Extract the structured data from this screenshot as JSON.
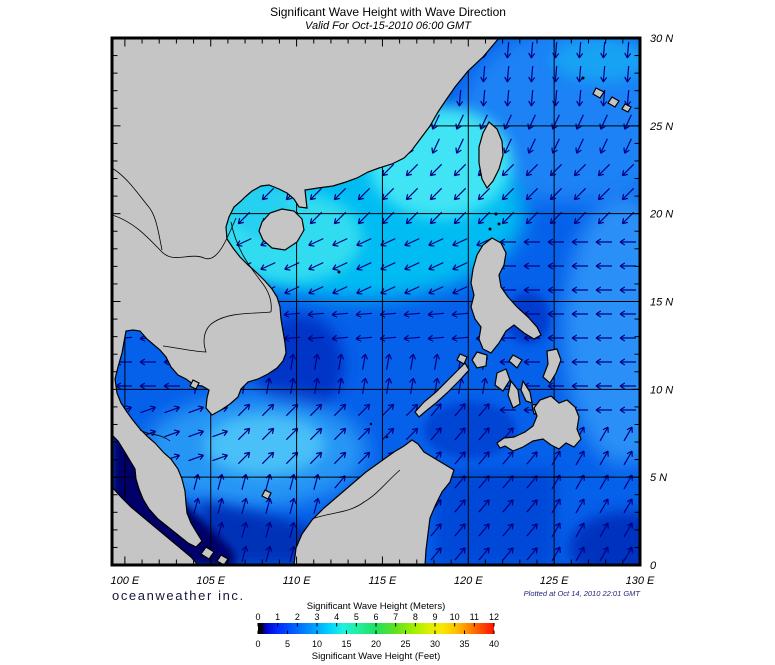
{
  "header": {
    "title": "Significant Wave Height with Wave Direction",
    "subtitle": "Valid For Oct-15-2010 06:00 GMT"
  },
  "axes": {
    "longitude_labels": [
      "100 E",
      "105 E",
      "110 E",
      "115 E",
      "120 E",
      "125 E",
      "130 E"
    ],
    "latitude_labels": [
      "30 N",
      "25 N",
      "20 N",
      "15 N",
      "10 N",
      "5 N",
      "0"
    ]
  },
  "legend": {
    "meters_label": "Significant Wave Height (Meters)",
    "meters_ticks": [
      "0",
      "1",
      "2",
      "3",
      "4",
      "5",
      "6",
      "7",
      "8",
      "9",
      "10",
      "11",
      "12"
    ],
    "feet_label": "Significant Wave Height (Feet)",
    "feet_ticks": [
      "0",
      "5",
      "10",
      "15",
      "20",
      "25",
      "30",
      "35",
      "40"
    ]
  },
  "footer": {
    "company": "oceanweather inc.",
    "plotted": "Plotted at Oct 14, 2010 22:01 GMT"
  },
  "colors": {
    "land": "#c5c5c5",
    "coastline": "#000000",
    "sea_base": "#0560ea",
    "sea_cyan_high": "#40e4f4",
    "sea_dark_low": "#000368",
    "arrow": "#000080",
    "grid": "#000000",
    "colorbar_scale": [
      "#000000",
      "#0000c0",
      "#0028ff",
      "#0064ff",
      "#00a0ff",
      "#00d0ff",
      "#20f0e0",
      "#20f0a0",
      "#20e060",
      "#60e020",
      "#a0f000",
      "#d8f000",
      "#f8e800",
      "#ffc000",
      "#ff8000",
      "#ff4800",
      "#ff1000"
    ]
  },
  "map_data": {
    "type": "heatmap",
    "projection": "lat-lon grid",
    "lon_range_deg_e": [
      100,
      130
    ],
    "lat_range_deg_n": [
      0,
      30
    ],
    "grid_interval_deg": 5,
    "units_primary": "meters",
    "units_secondary": "feet",
    "value_range_m": [
      0,
      12
    ],
    "value_range_ft": [
      0,
      40
    ]
  },
  "wave_direction_zones": [
    {
      "lat_min": 26,
      "lat_max": 31,
      "lon_min": 99,
      "lon_max": 131,
      "angle_deg": -95
    },
    {
      "lat_min": 23,
      "lat_max": 26,
      "lon_min": 99,
      "lon_max": 131,
      "angle_deg": -115
    },
    {
      "lat_min": 19,
      "lat_max": 23,
      "lon_min": 99,
      "lon_max": 131,
      "angle_deg": -135
    },
    {
      "lat_min": 15.5,
      "lat_max": 19,
      "lon_min": 99,
      "lon_max": 122,
      "angle_deg": -155
    },
    {
      "lat_min": 8,
      "lat_max": 21,
      "lon_min": 122,
      "lon_max": 131,
      "angle_deg": 180
    },
    {
      "lat_min": 12.5,
      "lat_max": 15.5,
      "lon_min": 99,
      "lon_max": 122,
      "angle_deg": 185
    },
    {
      "lat_min": 9.5,
      "lat_max": 12.5,
      "lon_min": 104,
      "lon_max": 122,
      "angle_deg": 80
    },
    {
      "lat_min": 5,
      "lat_max": 9.5,
      "lon_min": 99,
      "lon_max": 106,
      "angle_deg": 20
    },
    {
      "lat_min": 5,
      "lat_max": 9.5,
      "lon_min": 106,
      "lon_max": 118,
      "angle_deg": 45
    },
    {
      "lat_min": 0,
      "lat_max": 5,
      "lon_min": 99,
      "lon_max": 112,
      "angle_deg": 75
    },
    {
      "lat_min": 0,
      "lat_max": 9.5,
      "lon_min": 112,
      "lon_max": 124,
      "angle_deg": 50
    },
    {
      "lat_min": 0,
      "lat_max": 8,
      "lon_min": 124,
      "lon_max": 131,
      "angle_deg": 60
    }
  ]
}
